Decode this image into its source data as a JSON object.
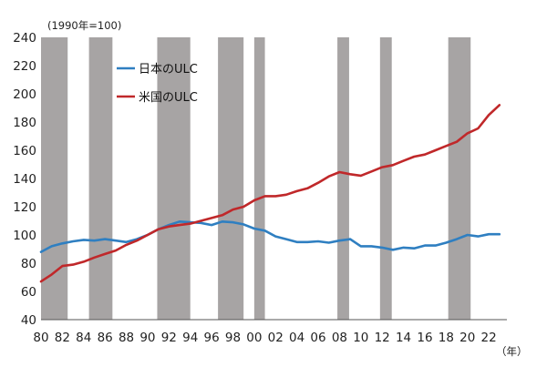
{
  "chart_data": {
    "type": "line",
    "unit_note": "(1990年=100)",
    "x_unit": "（年）",
    "ylim": [
      40,
      240
    ],
    "y_ticks": [
      40,
      60,
      80,
      100,
      120,
      140,
      160,
      180,
      200,
      220,
      240
    ],
    "xlim": [
      1980,
      2023.7
    ],
    "x_ticks": [
      1980,
      1982,
      1984,
      1986,
      1988,
      1990,
      1992,
      1994,
      1996,
      1998,
      2000,
      2002,
      2004,
      2006,
      2008,
      2010,
      2012,
      2014,
      2016,
      2018,
      2020,
      2022
    ],
    "x_tick_labels": [
      "80",
      "82",
      "84",
      "86",
      "88",
      "90",
      "92",
      "94",
      "96",
      "98",
      "00",
      "02",
      "04",
      "06",
      "08",
      "10",
      "12",
      "14",
      "16",
      "18",
      "20",
      "22"
    ],
    "grid": false,
    "legend_position": "top-left",
    "recession_color": "#a7a4a4",
    "recession_bands": [
      [
        1980.0,
        1982.5
      ],
      [
        1984.5,
        1986.7
      ],
      [
        1990.9,
        1994.0
      ],
      [
        1996.6,
        1999.0
      ],
      [
        2000.0,
        2001.0
      ],
      [
        2007.8,
        2008.9
      ],
      [
        2011.8,
        2012.9
      ],
      [
        2018.2,
        2020.3
      ]
    ],
    "series": [
      {
        "name": "日本のULC",
        "color": "#2f7fc1",
        "points": [
          [
            1980,
            88
          ],
          [
            1981,
            92
          ],
          [
            1982,
            94
          ],
          [
            1983,
            95.5
          ],
          [
            1984,
            96.5
          ],
          [
            1985,
            96
          ],
          [
            1986,
            97
          ],
          [
            1987,
            96
          ],
          [
            1988,
            95
          ],
          [
            1989,
            97
          ],
          [
            1990,
            100
          ],
          [
            1991,
            104
          ],
          [
            1992,
            107
          ],
          [
            1993,
            109.5
          ],
          [
            1994,
            109
          ],
          [
            1995,
            108.5
          ],
          [
            1996,
            107
          ],
          [
            1997,
            109.5
          ],
          [
            1998,
            109
          ],
          [
            1999,
            107.5
          ],
          [
            2000,
            104.5
          ],
          [
            2001,
            103
          ],
          [
            2002,
            99
          ],
          [
            2003,
            97
          ],
          [
            2004,
            95
          ],
          [
            2005,
            95
          ],
          [
            2006,
            95.5
          ],
          [
            2007,
            94.5
          ],
          [
            2008,
            96
          ],
          [
            2009,
            97
          ],
          [
            2010,
            92
          ],
          [
            2011,
            92
          ],
          [
            2012,
            91
          ],
          [
            2013,
            89.5
          ],
          [
            2014,
            91
          ],
          [
            2015,
            90.5
          ],
          [
            2016,
            92.5
          ],
          [
            2017,
            92.5
          ],
          [
            2018,
            94.5
          ],
          [
            2019,
            97
          ],
          [
            2020,
            100
          ],
          [
            2021,
            99
          ],
          [
            2022,
            100.5
          ],
          [
            2023,
            100.5
          ]
        ]
      },
      {
        "name": "米国のULC",
        "color": "#c0282a",
        "points": [
          [
            1980,
            67
          ],
          [
            1981,
            72
          ],
          [
            1982,
            78
          ],
          [
            1983,
            79
          ],
          [
            1984,
            81
          ],
          [
            1985,
            84
          ],
          [
            1986,
            86.5
          ],
          [
            1987,
            89
          ],
          [
            1988,
            93
          ],
          [
            1989,
            96
          ],
          [
            1990,
            100
          ],
          [
            1991,
            104
          ],
          [
            1992,
            106
          ],
          [
            1993,
            107
          ],
          [
            1994,
            108
          ],
          [
            1995,
            110
          ],
          [
            1996,
            112
          ],
          [
            1997,
            114
          ],
          [
            1998,
            118
          ],
          [
            1999,
            120
          ],
          [
            2000,
            124.5
          ],
          [
            2001,
            127.5
          ],
          [
            2002,
            127.5
          ],
          [
            2003,
            128.5
          ],
          [
            2004,
            131
          ],
          [
            2005,
            133
          ],
          [
            2006,
            137
          ],
          [
            2007,
            141.5
          ],
          [
            2008,
            144.5
          ],
          [
            2009,
            143
          ],
          [
            2010,
            142
          ],
          [
            2011,
            145
          ],
          [
            2012,
            148
          ],
          [
            2013,
            149.5
          ],
          [
            2014,
            152.5
          ],
          [
            2015,
            155.5
          ],
          [
            2016,
            157
          ],
          [
            2017,
            160
          ],
          [
            2018,
            163
          ],
          [
            2019,
            166
          ],
          [
            2020,
            172
          ],
          [
            2021,
            175.5
          ],
          [
            2022,
            185
          ],
          [
            2023,
            192
          ]
        ]
      }
    ]
  }
}
